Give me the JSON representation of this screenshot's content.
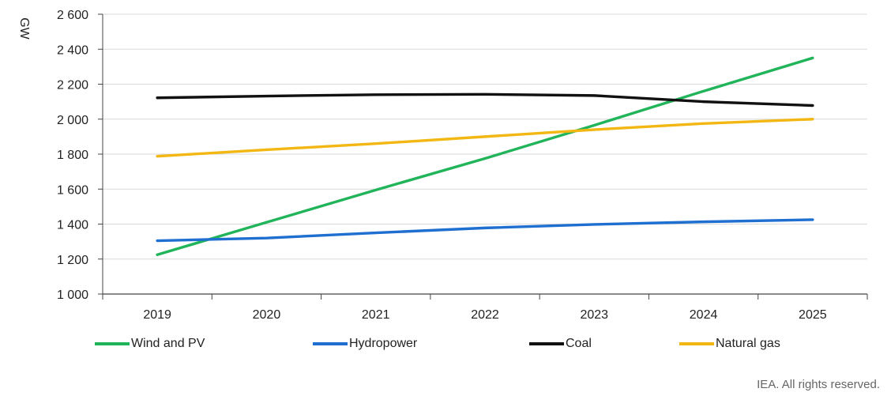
{
  "chart_data": {
    "type": "line",
    "ylabel": "GW",
    "x": [
      "2019",
      "2020",
      "2021",
      "2022",
      "2023",
      "2024",
      "2025"
    ],
    "ylim": [
      1000,
      2600
    ],
    "yticks": [
      1000,
      1200,
      1400,
      1600,
      1800,
      2000,
      2200,
      2400,
      2600
    ],
    "ytick_labels": [
      "1 000",
      "1 200",
      "1 400",
      "1 600",
      "1 800",
      "2 000",
      "2 200",
      "2 400",
      "2 600"
    ],
    "grid": true,
    "legend_position": "bottom",
    "series": [
      {
        "name": "Wind and PV",
        "color": "#22b45a",
        "values": [
          1225,
          1410,
          1595,
          1775,
          1965,
          2160,
          2350
        ]
      },
      {
        "name": "Hydropower",
        "color": "#1f6fd1",
        "values": [
          1305,
          1320,
          1350,
          1378,
          1398,
          1413,
          1425
        ]
      },
      {
        "name": "Coal",
        "color": "#111111",
        "values": [
          2122,
          2132,
          2140,
          2142,
          2135,
          2100,
          2078
        ]
      },
      {
        "name": "Natural gas",
        "color": "#f2b713",
        "values": [
          1788,
          1825,
          1860,
          1900,
          1940,
          1975,
          2000
        ]
      }
    ]
  },
  "footer": {
    "note": "IEA. All rights reserved."
  }
}
